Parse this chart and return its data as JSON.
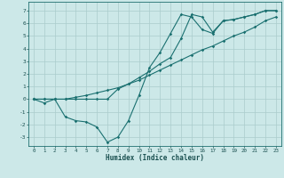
{
  "title": "",
  "xlabel": "Humidex (Indice chaleur)",
  "background_color": "#cce8e8",
  "grid_color": "#aacccc",
  "line_color": "#1a7070",
  "xlim": [
    -0.5,
    23.5
  ],
  "ylim": [
    -3.7,
    7.7
  ],
  "xticks": [
    0,
    1,
    2,
    3,
    4,
    5,
    6,
    7,
    8,
    9,
    10,
    11,
    12,
    13,
    14,
    15,
    16,
    17,
    18,
    19,
    20,
    21,
    22,
    23
  ],
  "yticks": [
    -3,
    -2,
    -1,
    0,
    1,
    2,
    3,
    4,
    5,
    6,
    7
  ],
  "line1_x": [
    0,
    1,
    2,
    3,
    4,
    5,
    6,
    7,
    8,
    9,
    10,
    11,
    12,
    13,
    14,
    15,
    16,
    17,
    18,
    19,
    20,
    21,
    22,
    23
  ],
  "line1_y": [
    0,
    -0.3,
    0,
    -1.4,
    -1.7,
    -1.8,
    -2.2,
    -3.4,
    -3.0,
    -1.7,
    0.3,
    2.5,
    3.7,
    5.2,
    6.7,
    6.5,
    5.5,
    5.2,
    6.2,
    6.3,
    6.5,
    6.7,
    7.0,
    7.0
  ],
  "line2_x": [
    0,
    1,
    2,
    3,
    4,
    5,
    6,
    7,
    8,
    9,
    10,
    11,
    12,
    13,
    14,
    15,
    16,
    17,
    18,
    19,
    20,
    21,
    22,
    23
  ],
  "line2_y": [
    0,
    0,
    0,
    0,
    0.15,
    0.3,
    0.5,
    0.7,
    0.9,
    1.2,
    1.5,
    1.9,
    2.3,
    2.7,
    3.1,
    3.5,
    3.9,
    4.2,
    4.6,
    5.0,
    5.3,
    5.7,
    6.2,
    6.5
  ],
  "line3_x": [
    0,
    1,
    2,
    3,
    4,
    5,
    6,
    7,
    8,
    9,
    10,
    11,
    12,
    13,
    14,
    15,
    16,
    17,
    18,
    19,
    20,
    21,
    22,
    23
  ],
  "line3_y": [
    0,
    0,
    0,
    0,
    0,
    0,
    0,
    0,
    0.8,
    1.2,
    1.7,
    2.2,
    2.8,
    3.3,
    4.8,
    6.7,
    6.5,
    5.3,
    6.2,
    6.3,
    6.5,
    6.7,
    7.0,
    7.0
  ]
}
